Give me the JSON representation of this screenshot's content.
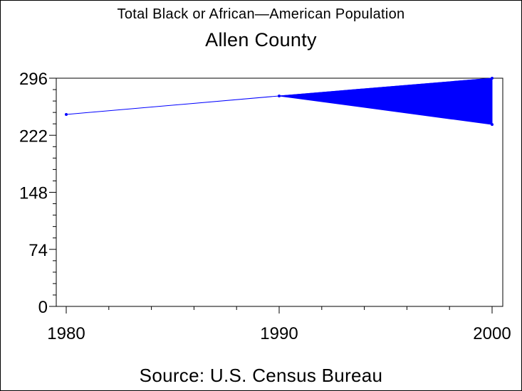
{
  "title": "Total Black or African—American Population",
  "subtitle": "Allen County",
  "footnote": "Source: U.S. Census Bureau",
  "colors": {
    "series": "#0000ff",
    "axis": "#000000",
    "background": "#ffffff"
  },
  "chart_data": {
    "type": "line",
    "title": "Total Black or African—American Population",
    "subtitle": "Allen County",
    "xlabel": "",
    "ylabel": "",
    "x": [
      1980,
      1990,
      2000
    ],
    "series": [
      {
        "values": [
          249,
          273,
          296
        ]
      }
    ],
    "range_band": {
      "x": [
        1990,
        2000
      ],
      "low": [
        273,
        236
      ],
      "high": [
        273,
        296
      ]
    },
    "xlim": [
      1980,
      2000
    ],
    "ylim": [
      0,
      296
    ],
    "yticks": [
      0,
      74,
      148,
      222,
      296
    ],
    "ytick_labels": [
      "0",
      "74",
      "148",
      "222",
      "296"
    ],
    "xticks": [
      1980,
      1990,
      2000
    ],
    "xtick_labels": [
      "1980",
      "1990",
      "2000"
    ],
    "x_minor_step": 2,
    "y_minor_step": 14.8,
    "grid": false,
    "legend": "none"
  }
}
